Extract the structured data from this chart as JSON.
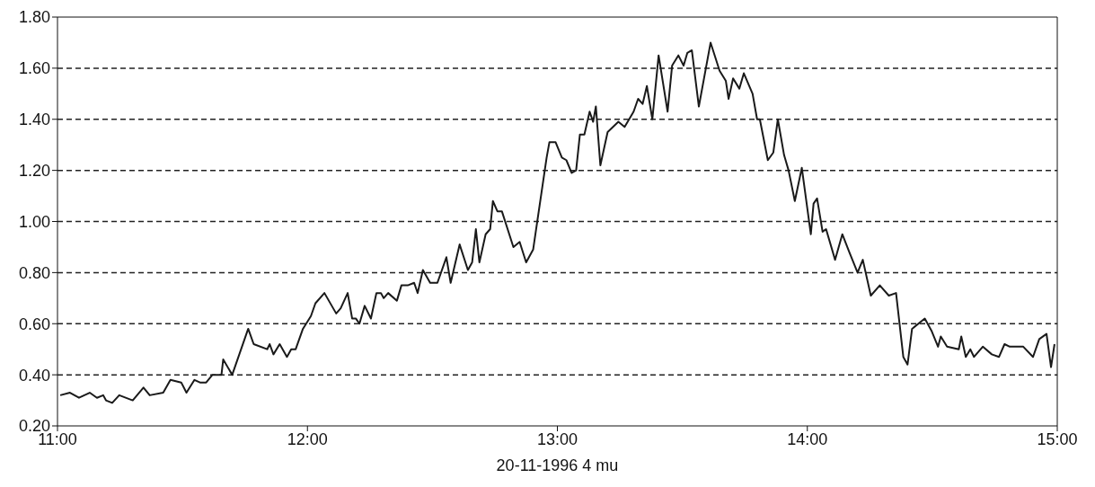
{
  "chart_data": {
    "type": "line",
    "xlabel": "20-11-1996  4 mu",
    "x": [
      11.011,
      11.05,
      11.086,
      11.129,
      11.158,
      11.183,
      11.194,
      11.219,
      11.247,
      11.301,
      11.344,
      11.369,
      11.423,
      11.452,
      11.495,
      11.516,
      11.548,
      11.57,
      11.595,
      11.62,
      11.656,
      11.663,
      11.699,
      11.763,
      11.785,
      11.839,
      11.849,
      11.864,
      11.889,
      11.918,
      11.935,
      11.953,
      11.982,
      12.014,
      12.032,
      12.068,
      12.115,
      12.133,
      12.161,
      12.179,
      12.194,
      12.208,
      12.229,
      12.254,
      12.276,
      12.294,
      12.305,
      12.323,
      12.358,
      12.376,
      12.401,
      12.427,
      12.441,
      12.462,
      12.491,
      12.52,
      12.556,
      12.573,
      12.609,
      12.642,
      12.659,
      12.674,
      12.688,
      12.713,
      12.731,
      12.742,
      12.76,
      12.778,
      12.824,
      12.849,
      12.875,
      12.903,
      12.957,
      12.968,
      12.993,
      13.018,
      13.036,
      13.057,
      13.075,
      13.09,
      13.108,
      13.129,
      13.143,
      13.154,
      13.172,
      13.201,
      13.244,
      13.269,
      13.305,
      13.323,
      13.341,
      13.358,
      13.38,
      13.405,
      13.441,
      13.459,
      13.484,
      13.505,
      13.52,
      13.538,
      13.566,
      13.613,
      13.649,
      13.674,
      13.685,
      13.703,
      13.728,
      13.746,
      13.781,
      13.799,
      13.81,
      13.842,
      13.864,
      13.882,
      13.907,
      13.925,
      13.95,
      13.978,
      14.014,
      14.025,
      14.039,
      14.061,
      14.075,
      14.111,
      14.14,
      14.168,
      14.201,
      14.222,
      14.254,
      14.29,
      14.326,
      14.355,
      14.384,
      14.401,
      14.419,
      14.47,
      14.498,
      14.523,
      14.534,
      14.559,
      14.606,
      14.616,
      14.634,
      14.652,
      14.667,
      14.702,
      14.738,
      14.767,
      14.789,
      14.81,
      14.864,
      14.903,
      14.928,
      14.957,
      14.975,
      14.989
    ],
    "series": [
      {
        "color": "#1a1a1a",
        "values": [
          0.32,
          0.33,
          0.31,
          0.33,
          0.31,
          0.32,
          0.3,
          0.29,
          0.32,
          0.3,
          0.35,
          0.32,
          0.33,
          0.38,
          0.37,
          0.33,
          0.38,
          0.37,
          0.37,
          0.4,
          0.4,
          0.46,
          0.4,
          0.58,
          0.52,
          0.5,
          0.52,
          0.48,
          0.52,
          0.47,
          0.5,
          0.5,
          0.58,
          0.63,
          0.68,
          0.72,
          0.64,
          0.66,
          0.72,
          0.62,
          0.62,
          0.6,
          0.67,
          0.62,
          0.72,
          0.72,
          0.7,
          0.72,
          0.69,
          0.75,
          0.75,
          0.76,
          0.72,
          0.81,
          0.76,
          0.76,
          0.86,
          0.76,
          0.91,
          0.81,
          0.84,
          0.97,
          0.84,
          0.95,
          0.97,
          1.08,
          1.04,
          1.04,
          0.9,
          0.92,
          0.84,
          0.89,
          1.25,
          1.31,
          1.31,
          1.25,
          1.24,
          1.19,
          1.2,
          1.34,
          1.34,
          1.43,
          1.39,
          1.45,
          1.22,
          1.35,
          1.39,
          1.37,
          1.43,
          1.48,
          1.46,
          1.53,
          1.4,
          1.65,
          1.43,
          1.61,
          1.65,
          1.61,
          1.66,
          1.67,
          1.45,
          1.7,
          1.59,
          1.55,
          1.48,
          1.56,
          1.52,
          1.58,
          1.5,
          1.4,
          1.4,
          1.24,
          1.27,
          1.4,
          1.26,
          1.2,
          1.08,
          1.21,
          0.95,
          1.07,
          1.09,
          0.96,
          0.97,
          0.85,
          0.95,
          0.88,
          0.8,
          0.85,
          0.71,
          0.75,
          0.71,
          0.72,
          0.47,
          0.44,
          0.58,
          0.62,
          0.57,
          0.51,
          0.55,
          0.51,
          0.5,
          0.55,
          0.47,
          0.5,
          0.47,
          0.51,
          0.48,
          0.47,
          0.52,
          0.51,
          0.51,
          0.47,
          0.54,
          0.56,
          0.43,
          0.52
        ]
      }
    ],
    "xlim": [
      11,
      15
    ],
    "xticks": [
      {
        "value": 11,
        "label": "11:00"
      },
      {
        "value": 12,
        "label": "12:00"
      },
      {
        "value": 13,
        "label": "13:00"
      },
      {
        "value": 14,
        "label": "14:00"
      },
      {
        "value": 15,
        "label": "15:00"
      }
    ],
    "ylim": [
      0.2,
      1.8
    ],
    "yticks": [
      {
        "value": 0.2,
        "label": "0.20"
      },
      {
        "value": 0.4,
        "label": "0.40"
      },
      {
        "value": 0.6,
        "label": "0.60"
      },
      {
        "value": 0.8,
        "label": "0.80"
      },
      {
        "value": 1.0,
        "label": "1.00"
      },
      {
        "value": 1.2,
        "label": "1.20"
      },
      {
        "value": 1.4,
        "label": "1.40"
      },
      {
        "value": 1.6,
        "label": "1.60"
      },
      {
        "value": 1.8,
        "label": "1.80"
      }
    ],
    "grid": "y",
    "legend": false,
    "marker": "none",
    "line_style": "solid"
  }
}
